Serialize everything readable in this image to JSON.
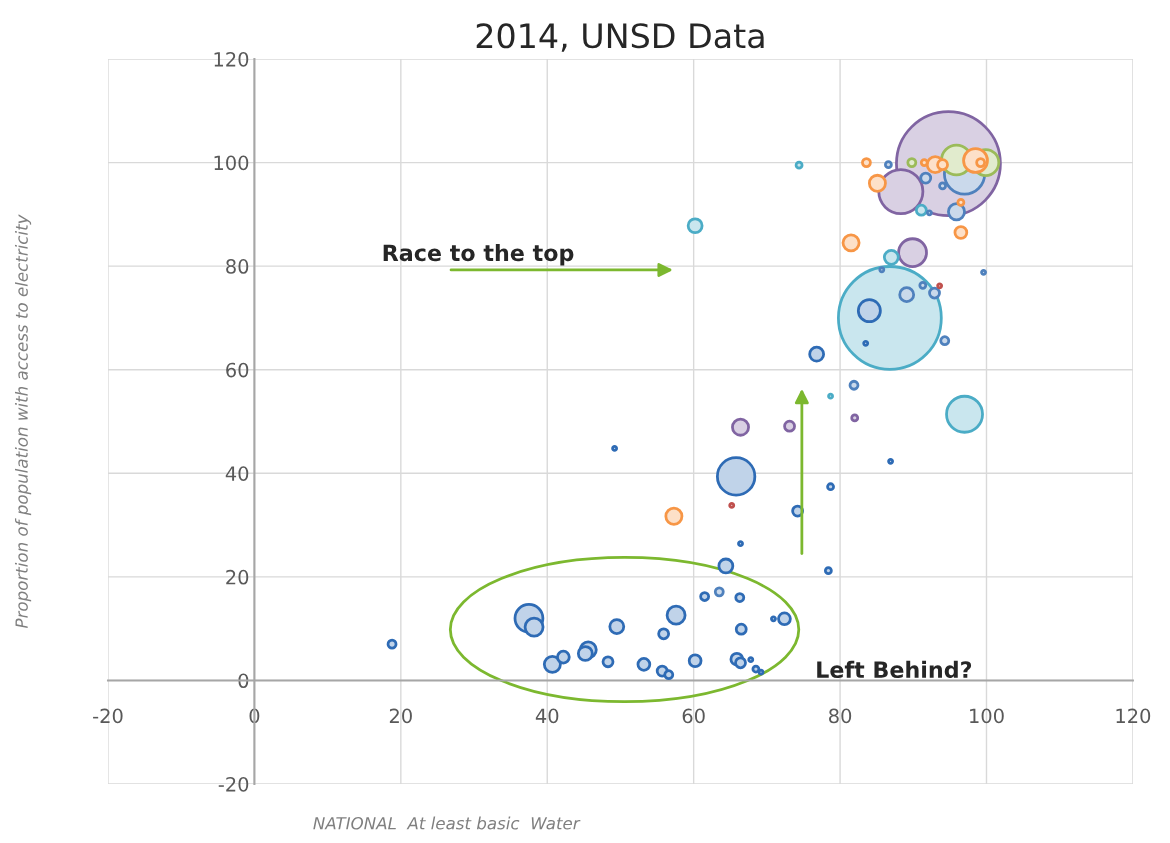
{
  "chart_data": {
    "type": "bubble",
    "title": "2014, UNSD Data",
    "xlabel": "NATIONAL  At least basic  Water",
    "ylabel": "Proportion of population with access to electricity",
    "xlim": [
      -20,
      120
    ],
    "xticks": [
      -20,
      0,
      20,
      40,
      60,
      80,
      100,
      120
    ],
    "ylim": [
      -20,
      120
    ],
    "yticks": [
      -20,
      0,
      20,
      40,
      60,
      80,
      100,
      120
    ],
    "grid": true,
    "annotations": [
      "Race to the top",
      "Left Behind?"
    ],
    "series": [
      {
        "color": "#8064a2",
        "x": [
          94.8,
          88.3,
          89.9,
          66.4,
          73.1,
          82.0
        ],
        "values": [
          99.8,
          94.4,
          82.6,
          48.9,
          49.1,
          50.7
        ],
        "sizes": [
          1,
          0.18,
          0.072,
          0.024,
          0.0092,
          0.0033
        ]
      },
      {
        "color": "#4bacc6",
        "x": [
          86.8,
          97.0,
          87.0,
          91.1,
          74.4,
          60.2,
          78.7
        ],
        "values": [
          70.0,
          51.4,
          81.7,
          90.8,
          99.5,
          87.8,
          54.9
        ],
        "sizes": [
          0.98,
          0.12,
          0.018,
          0.0092,
          0.0033,
          0.018,
          0.0015
        ]
      },
      {
        "color": "#4f81bd",
        "x": [
          63.5,
          81.9,
          94.3,
          97.0,
          95.9,
          91.7,
          94.0,
          92.2,
          86.6,
          89.1,
          91.3,
          92.9,
          99.6,
          85.7
        ],
        "values": [
          17.1,
          57.0,
          65.6,
          97.8,
          90.5,
          97.0,
          95.5,
          90.3,
          99.6,
          74.5,
          76.3,
          74.8,
          78.8,
          79.3
        ],
        "sizes": [
          0.0059,
          0.0059,
          0.0059,
          0.15,
          0.024,
          0.0092,
          0.0033,
          0.0015,
          0.0033,
          0.018,
          0.0033,
          0.0092,
          0.0015,
          0.0015
        ]
      },
      {
        "color": "#9bbb59",
        "x": [
          95.9,
          99.9,
          89.8
        ],
        "values": [
          100.5,
          100.0,
          100.0
        ],
        "sizes": [
          0.083,
          0.063,
          0.0059
        ]
      },
      {
        "color": "#f79646",
        "x": [
          98.5,
          93.0,
          94.0,
          85.1,
          83.6,
          81.5,
          96.5,
          96.5,
          91.5,
          99.2,
          57.3
        ],
        "values": [
          100.4,
          99.6,
          99.6,
          96.0,
          100.0,
          84.5,
          86.5,
          92.3,
          100.0,
          100.0,
          31.7
        ],
        "sizes": [
          0.053,
          0.024,
          0.0092,
          0.024,
          0.0059,
          0.024,
          0.013,
          0.0033,
          0.0033,
          0.0059,
          0.024
        ]
      },
      {
        "color": "#c0504d",
        "x": [
          65.2,
          93.6
        ],
        "values": [
          33.8,
          76.2
        ],
        "sizes": [
          0.0015,
          0.0015
        ]
      },
      {
        "color": "#2e6bb5",
        "x": [
          18.8,
          37.5,
          38.2,
          40.7,
          42.2,
          45.6,
          45.2,
          48.3,
          49.5,
          53.2,
          55.7,
          56.6,
          55.9,
          57.6,
          60.2,
          61.5,
          66.3,
          65.9,
          66.4,
          66.5,
          67.8,
          68.5,
          69.2,
          70.9,
          72.4,
          64.4,
          65.8,
          66.4,
          74.2,
          78.4,
          78.7,
          86.9,
          49.2,
          76.8,
          84.0,
          83.5
        ],
        "values": [
          7.0,
          12.0,
          10.3,
          3.1,
          4.5,
          5.9,
          5.2,
          3.6,
          10.4,
          3.1,
          1.8,
          1.1,
          9.0,
          12.6,
          3.8,
          16.2,
          16.0,
          4.1,
          3.4,
          9.9,
          4.0,
          2.2,
          1.6,
          11.9,
          11.9,
          22.1,
          39.4,
          26.4,
          32.7,
          21.2,
          37.4,
          42.3,
          44.8,
          63.0,
          71.4,
          65.1
        ],
        "sizes": [
          0.0059,
          0.072,
          0.03,
          0.024,
          0.013,
          0.024,
          0.018,
          0.0092,
          0.018,
          0.013,
          0.0092,
          0.0059,
          0.0092,
          0.03,
          0.013,
          0.0059,
          0.0059,
          0.013,
          0.0092,
          0.0092,
          0.0015,
          0.0033,
          0.0015,
          0.0015,
          0.013,
          0.018,
          0.13,
          0.0015,
          0.0092,
          0.0033,
          0.0033,
          0.0015,
          0.0015,
          0.018,
          0.045,
          0.0015
        ]
      }
    ]
  }
}
